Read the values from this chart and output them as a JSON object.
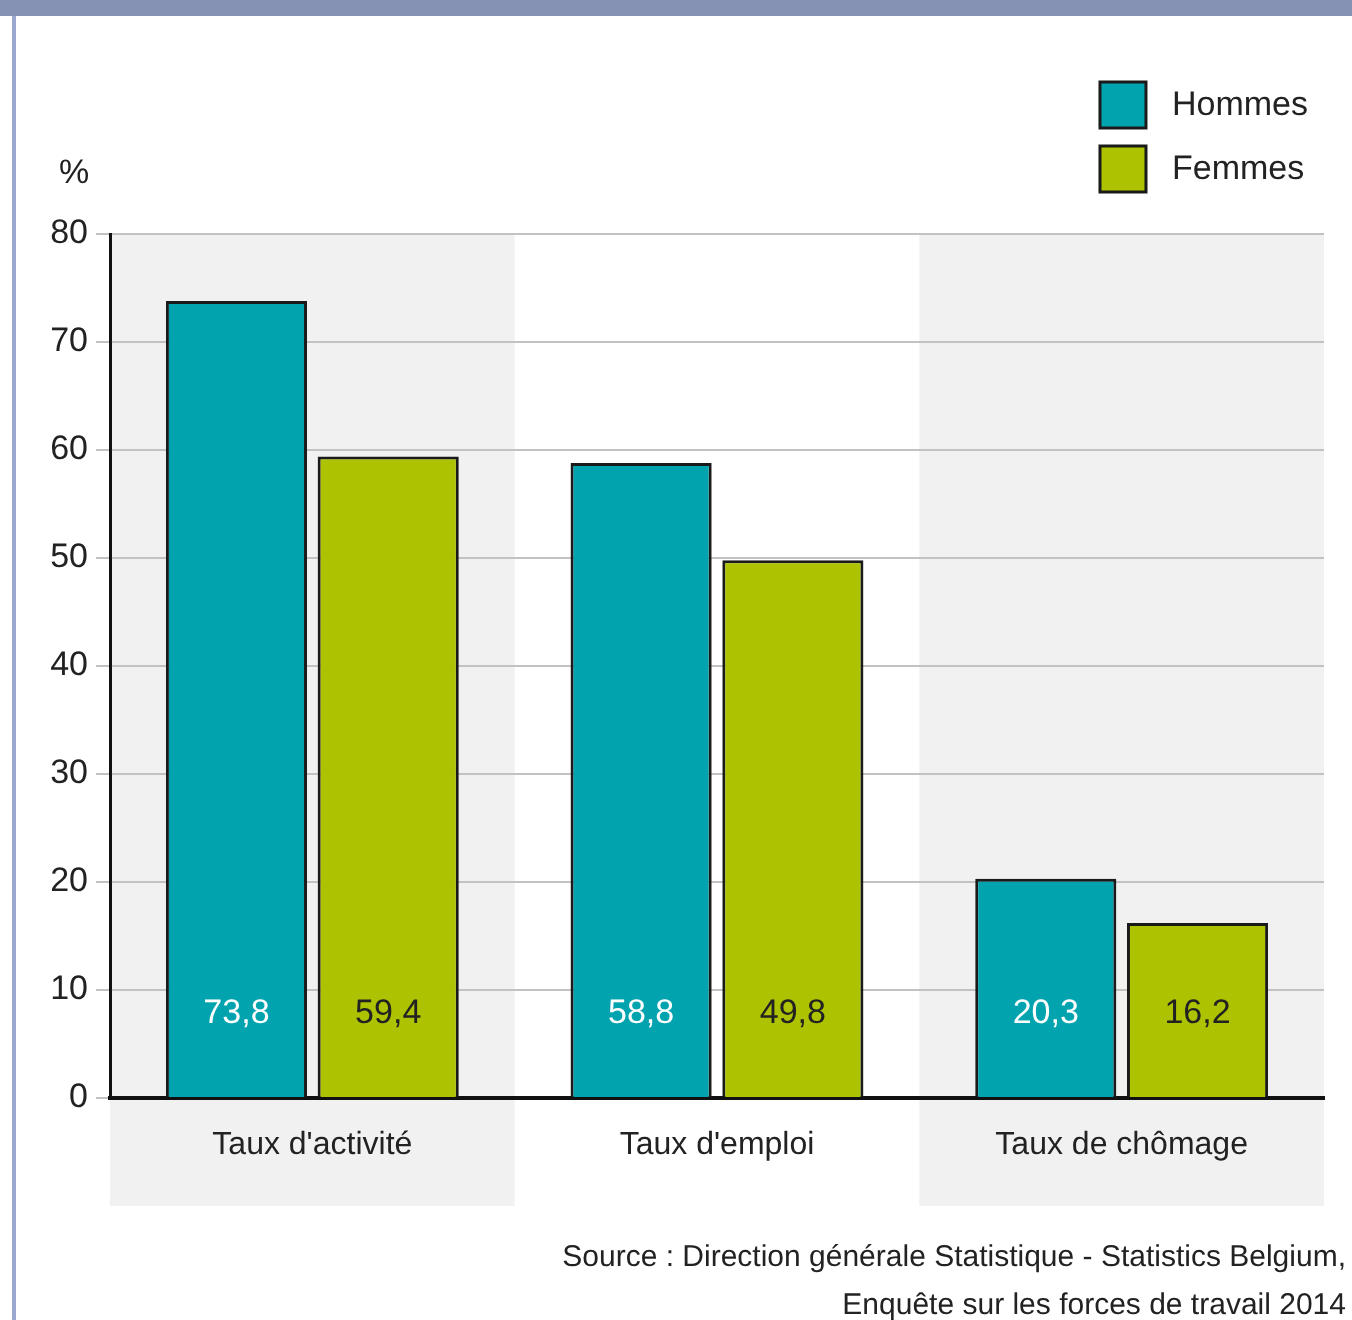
{
  "chart_data": {
    "type": "bar",
    "ylabel": "%",
    "categories": [
      "Taux d'activité",
      "Taux d'emploi",
      "Taux de chômage"
    ],
    "series": [
      {
        "name": "Hommes",
        "color": "#00a3ae",
        "values": [
          73.8,
          58.8,
          20.3
        ],
        "value_labels": [
          "73,8",
          "58,8",
          "20,3"
        ]
      },
      {
        "name": "Femmes",
        "color": "#adc200",
        "values": [
          59.4,
          49.8,
          16.2
        ],
        "value_labels": [
          "59,4",
          "49,8",
          "16,2"
        ]
      }
    ],
    "ylim": [
      0,
      80
    ],
    "yticks": [
      0,
      10,
      20,
      30,
      40,
      50,
      60,
      70,
      80
    ],
    "grid": "y",
    "legend": "top right",
    "bands": [
      {
        "axis": "x",
        "from": "Taux d'activité",
        "to": "Taux d'activité",
        "color": "#f1f1f1"
      },
      {
        "axis": "x",
        "from": "Taux de chômage",
        "to": "Taux de chômage",
        "color": "#f1f1f1"
      }
    ],
    "annotations": [
      "Source : Direction générale Statistique - Statistics Belgium, Enquête sur les forces de travail 2014"
    ]
  }
}
